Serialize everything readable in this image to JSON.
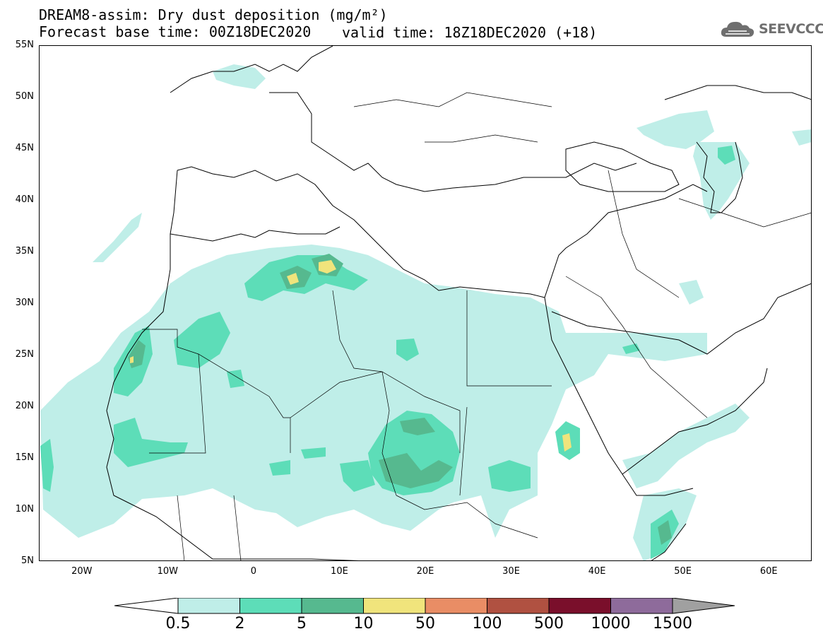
{
  "title_line1": "DREAM8-assim: Dry dust deposition (mg/m²)",
  "title_line2": "Forecast base time: 00Z18DEC2020",
  "valid_time": "valid time: 18Z18DEC2020 (+18)",
  "logo_text": "SEEVCCC",
  "lat_ticks": [
    "55N",
    "50N",
    "45N",
    "40N",
    "35N",
    "30N",
    "25N",
    "20N",
    "15N",
    "10N",
    "5N"
  ],
  "lon_ticks": [
    "20W",
    "10W",
    "0",
    "10E",
    "20E",
    "30E",
    "40E",
    "50E",
    "60E"
  ],
  "colorbar": {
    "labels": [
      "0.5",
      "2",
      "5",
      "10",
      "50",
      "100",
      "500",
      "1000",
      "1500"
    ],
    "colors": [
      "#bfeee8",
      "#5dddb8",
      "#56b98f",
      "#f0e47c",
      "#e98d65",
      "#b05141",
      "#7a0f2b",
      "#8e6b9b"
    ],
    "under_color": "#ffffff",
    "over_color": "#a0a0a0"
  },
  "map_extent": {
    "lon": [
      -25,
      65
    ],
    "lat": [
      5,
      55
    ]
  }
}
